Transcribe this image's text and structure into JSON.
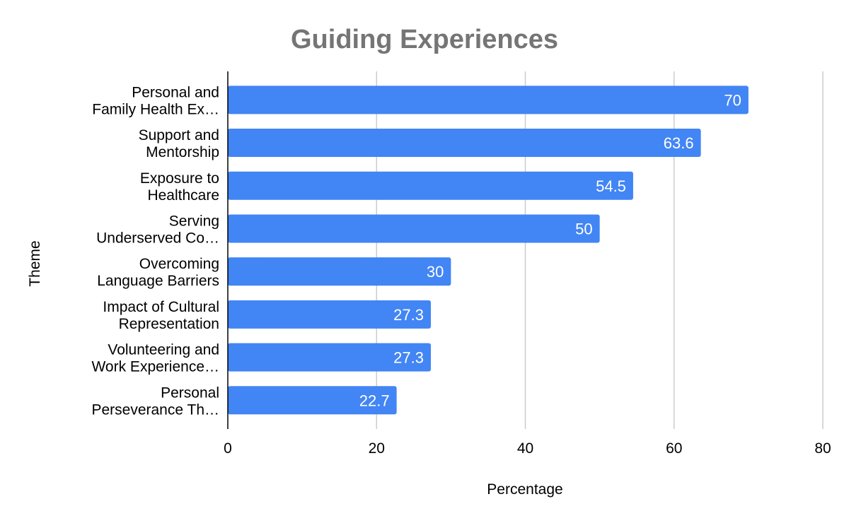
{
  "chart_data": {
    "type": "bar",
    "orientation": "horizontal",
    "title": "Guiding Experiences",
    "xlabel": "Percentage",
    "ylabel": "Theme",
    "categories": [
      [
        "Personal and",
        "Family Health Ex…"
      ],
      [
        "Support and",
        "Mentorship"
      ],
      [
        "Exposure to",
        "Healthcare"
      ],
      [
        "Serving",
        "Underserved Co…"
      ],
      [
        "Overcoming",
        "Language Barriers"
      ],
      [
        "Impact of Cultural",
        "Representation"
      ],
      [
        "Volunteering and",
        "Work Experience…"
      ],
      [
        "Personal",
        "Perseverance Th…"
      ]
    ],
    "values": [
      70,
      63.6,
      54.5,
      50,
      30,
      27.3,
      27.3,
      22.7
    ],
    "data_labels": [
      "70",
      "63.6",
      "54.5",
      "50",
      "30",
      "27.3",
      "27.3",
      "22.7"
    ],
    "xlim": [
      0,
      80
    ],
    "xticks": [
      "0",
      "20",
      "40",
      "60",
      "80"
    ],
    "grid": "vertical",
    "legend": "none",
    "colors": {
      "bar": "#4285f4",
      "grid": "#cccccc",
      "axis": "#000000",
      "title": "#757575",
      "data_label": "#ffffff"
    }
  }
}
